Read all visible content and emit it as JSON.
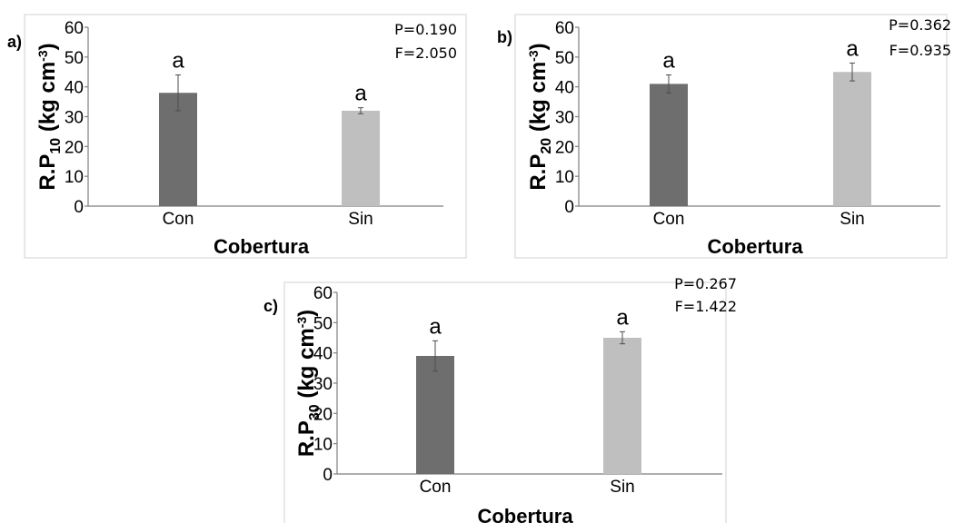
{
  "chart_data": [
    {
      "type": "bar",
      "panel_tag": "a)",
      "categories": [
        "Con",
        "Sin"
      ],
      "values": [
        38,
        32
      ],
      "errors": [
        6,
        1
      ],
      "significance": [
        "a",
        "a"
      ],
      "colors": [
        "#6e6e6e",
        "#bfbfbf"
      ],
      "xlabel": "Cobertura",
      "ylabel": {
        "base": "R.P",
        "sub": "10",
        "mid": " (kg cm",
        "sup": "-3",
        "end": ")"
      },
      "ylim": [
        0,
        60
      ],
      "yticks": [
        0,
        10,
        20,
        30,
        40,
        50,
        60
      ],
      "stats": {
        "p": "P=0.190",
        "f": "F=2.050"
      },
      "grid": false
    },
    {
      "type": "bar",
      "panel_tag": "b)",
      "categories": [
        "Con",
        "Sin"
      ],
      "values": [
        41,
        45
      ],
      "errors": [
        3,
        3
      ],
      "significance": [
        "a",
        "a"
      ],
      "colors": [
        "#6e6e6e",
        "#bfbfbf"
      ],
      "xlabel": "Cobertura",
      "ylabel": {
        "base": "R.P",
        "sub": "20",
        "mid": " (kg cm",
        "sup": "-3",
        "end": ")"
      },
      "ylim": [
        0,
        60
      ],
      "yticks": [
        0,
        10,
        20,
        30,
        40,
        50,
        60
      ],
      "stats": {
        "p": "P=0.362",
        "f": "F=0.935"
      },
      "grid": false
    },
    {
      "type": "bar",
      "panel_tag": "c)",
      "categories": [
        "Con",
        "Sin"
      ],
      "values": [
        39,
        45
      ],
      "errors": [
        5,
        2
      ],
      "significance": [
        "a",
        "a"
      ],
      "colors": [
        "#6e6e6e",
        "#bfbfbf"
      ],
      "xlabel": "Cobertura",
      "ylabel": {
        "base": "R.P",
        "sub": "30",
        "mid": " (kg cm",
        "sup": "-3",
        "end": ")"
      },
      "ylim": [
        0,
        60
      ],
      "yticks": [
        0,
        10,
        20,
        30,
        40,
        50,
        60
      ],
      "stats": {
        "p": "P=0.267",
        "f": "F=1.422"
      },
      "grid": false
    }
  ]
}
